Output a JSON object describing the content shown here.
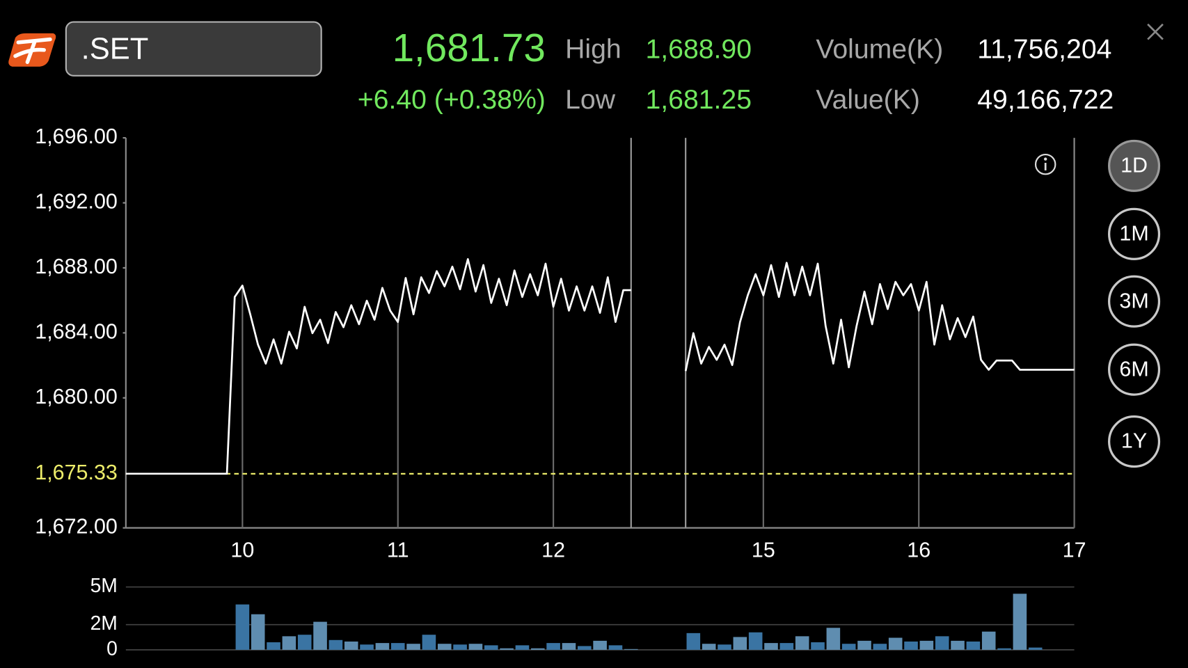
{
  "header": {
    "symbol": ".SET",
    "last": "1,681.73",
    "change": "+6.40 (+0.38%)",
    "high_label": "High",
    "high": "1,688.90",
    "low_label": "Low",
    "low": "1,681.25",
    "volume_label": "Volume(K)",
    "volume": "11,756,204",
    "value_label": "Value(K)",
    "value": "49,166,722"
  },
  "periods": [
    "1D",
    "1M",
    "3M",
    "6M",
    "1Y"
  ],
  "selected_period": 0,
  "chart_data": [
    {
      "type": "line",
      "color": "#ffffff",
      "x": [
        9.25,
        9.9,
        9.95,
        10.0,
        10.05,
        10.1,
        10.15,
        10.2,
        10.25,
        10.3,
        10.35,
        10.4,
        10.45,
        10.5,
        10.55,
        10.6,
        10.65,
        10.7,
        10.75,
        10.8,
        10.85,
        10.9,
        10.95,
        11.0,
        11.05,
        11.1,
        11.15,
        11.2,
        11.25,
        11.3,
        11.35,
        11.4,
        11.45,
        11.5,
        11.55,
        11.6,
        11.65,
        11.7,
        11.75,
        11.8,
        11.85,
        11.9,
        11.95,
        12.0,
        12.05,
        12.1,
        12.15,
        12.2,
        12.25,
        12.3,
        12.35,
        12.4,
        12.45,
        12.5,
        13.5,
        14.5,
        14.55,
        14.6,
        14.65,
        14.7,
        14.75,
        14.8,
        14.85,
        14.9,
        14.95,
        15.0,
        15.05,
        15.1,
        15.15,
        15.2,
        15.25,
        15.3,
        15.35,
        15.4,
        15.45,
        15.5,
        15.55,
        15.6,
        15.65,
        15.7,
        15.75,
        15.8,
        15.85,
        15.9,
        15.95,
        16.0,
        16.05,
        16.1,
        16.15,
        16.2,
        16.25,
        16.3,
        16.35,
        16.4,
        16.45,
        16.5,
        16.55,
        16.6,
        16.65,
        17.0
      ],
      "values": [
        1675.33,
        1675.33,
        1686.21,
        1686.91,
        1685.14,
        1683.28,
        1682.11,
        1683.6,
        1682.11,
        1684.07,
        1683.04,
        1685.61,
        1683.98,
        1684.81,
        1683.37,
        1685.28,
        1684.35,
        1685.7,
        1684.53,
        1685.98,
        1684.81,
        1686.77,
        1685.37,
        1684.67,
        1687.38,
        1685.14,
        1687.42,
        1686.45,
        1687.8,
        1686.86,
        1688.08,
        1686.68,
        1688.54,
        1686.54,
        1688.17,
        1685.84,
        1687.33,
        1685.7,
        1687.84,
        1686.21,
        1687.61,
        1686.31,
        1688.26,
        1685.61,
        1687.33,
        1685.37,
        1686.86,
        1685.37,
        1686.86,
        1685.23,
        1687.42,
        1684.67,
        1686.63,
        1686.63,
        null,
        1681.65,
        1683.98,
        1682.11,
        1683.14,
        1682.34,
        1683.28,
        1682.02,
        1684.67,
        1686.31,
        1687.61,
        1686.31,
        1688.17,
        1686.21,
        1688.31,
        1686.31,
        1688.08,
        1686.31,
        1688.26,
        1684.44,
        1682.11,
        1684.81,
        1681.88,
        1684.44,
        1686.54,
        1684.53,
        1687.0,
        1685.47,
        1687.14,
        1686.31,
        1687.0,
        1685.37,
        1687.14,
        1683.28,
        1685.7,
        1683.6,
        1684.91,
        1683.74,
        1685.0,
        1682.34,
        1681.73,
        1682.3,
        1682.3,
        1682.3,
        1681.73,
        1681.73
      ],
      "xlim": [
        9.25,
        17
      ],
      "xbreak": [
        12.5,
        14.5
      ],
      "xticks": [
        10,
        11,
        12,
        15,
        16,
        17
      ],
      "ylim": [
        1672,
        1696
      ],
      "yticks": [
        {
          "value": 1696,
          "label": "1,696.00"
        },
        {
          "value": 1692,
          "label": "1,692.00"
        },
        {
          "value": 1688,
          "label": "1,688.00"
        },
        {
          "value": 1684,
          "label": "1,684.00"
        },
        {
          "value": 1680,
          "label": "1,680.00"
        },
        {
          "value": 1672,
          "label": "1,672.00"
        }
      ],
      "reference_line": {
        "value": 1675.33,
        "label": "1,675.33",
        "color": "#ecec6a"
      }
    },
    {
      "type": "bar",
      "color": "#3a74a3",
      "x": [
        10.0,
        10.1,
        10.2,
        10.3,
        10.4,
        10.5,
        10.6,
        10.7,
        10.8,
        10.9,
        11.0,
        11.1,
        11.2,
        11.3,
        11.4,
        11.5,
        11.6,
        11.7,
        11.8,
        11.9,
        12.0,
        12.1,
        12.2,
        12.3,
        12.4,
        12.5,
        14.55,
        14.65,
        14.75,
        14.85,
        14.95,
        15.05,
        15.15,
        15.25,
        15.35,
        15.45,
        15.55,
        15.65,
        15.75,
        15.85,
        15.95,
        16.05,
        16.15,
        16.25,
        16.35,
        16.45,
        16.55,
        16.65,
        16.75
      ],
      "values": [
        3.61,
        2.83,
        0.6,
        1.08,
        1.2,
        2.23,
        0.78,
        0.66,
        0.42,
        0.54,
        0.54,
        0.48,
        1.2,
        0.48,
        0.42,
        0.48,
        0.36,
        0.12,
        0.36,
        0.12,
        0.54,
        0.54,
        0.3,
        0.72,
        0.36,
        0.06,
        1.33,
        0.48,
        0.42,
        1.02,
        1.39,
        0.54,
        0.54,
        1.08,
        0.6,
        1.75,
        0.48,
        0.72,
        0.48,
        0.96,
        0.66,
        0.72,
        1.08,
        0.72,
        0.66,
        1.45,
        0.12,
        4.46,
        0.18
      ],
      "xlim": [
        9.25,
        17
      ],
      "xbreak": [
        12.5,
        14.5
      ],
      "ylim": [
        0,
        5
      ],
      "yticks": [
        {
          "value": 5,
          "label": "5M"
        },
        {
          "value": 2,
          "label": "2M"
        },
        0
      ]
    }
  ]
}
